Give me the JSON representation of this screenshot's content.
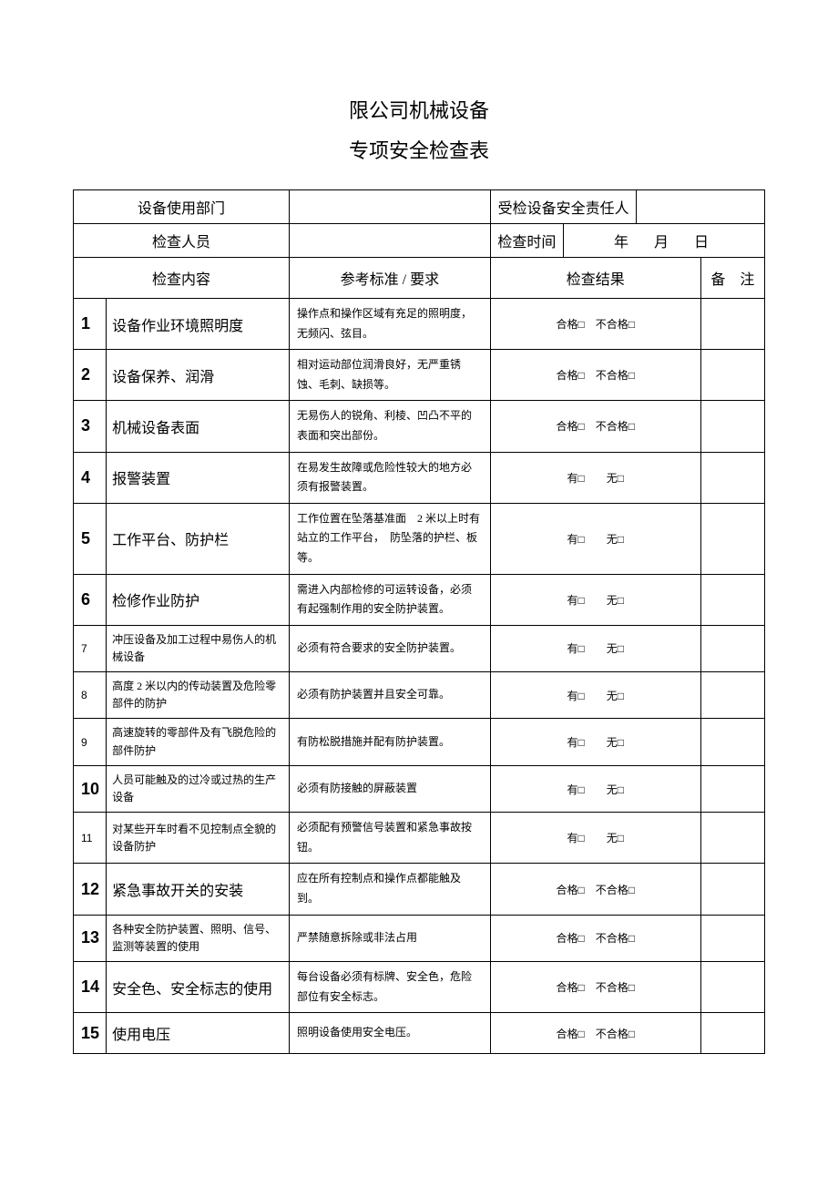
{
  "title": {
    "line1": "限公司机械设备",
    "line2": "专项安全检查表"
  },
  "header": {
    "dept_label": "设备使用部门",
    "dept_value": "",
    "responsible_label": "受检设备安全责任人",
    "responsible_value": "",
    "inspector_label": "检查人员",
    "inspector_value": "",
    "time_label": "检查时间",
    "time_value": "年　月　日"
  },
  "columns": {
    "content": "检查内容",
    "standard": "参考标准 / 要求",
    "result": "检查结果",
    "remark": "备　注"
  },
  "result_labels": {
    "pass": "合格□",
    "fail": "不合格□",
    "yes": "有□",
    "no": "无□"
  },
  "rows": [
    {
      "n": "1",
      "big": true,
      "item": "设备作业环境照明度",
      "item_big": true,
      "std": "操作点和操作区域有充足的照明度，无频闪、弦目。",
      "type": "pf"
    },
    {
      "n": "2",
      "big": true,
      "item": "设备保养、润滑",
      "item_big": true,
      "std": "相对运动部位润滑良好，无严重锈蚀、毛刺、缺损等。",
      "type": "pf"
    },
    {
      "n": "3",
      "big": true,
      "item": "机械设备表面",
      "item_big": true,
      "std": "无易伤人的锐角、利棱、凹凸不平的表面和突出部份。",
      "type": "pf"
    },
    {
      "n": "4",
      "big": true,
      "item": "报警装置",
      "item_big": true,
      "std": "在易发生故障或危险性较大的地方必须有报警装置。",
      "type": "yn"
    },
    {
      "n": "5",
      "big": true,
      "item": "工作平台、防护栏",
      "item_big": true,
      "std": "工作位置在坠落基准面　2 米以上时有站立的工作平台，　防坠落的护栏、板等。",
      "type": "yn"
    },
    {
      "n": "6",
      "big": true,
      "item": "检修作业防护",
      "item_big": true,
      "std": "需进入内部检修的可运转设备，必须有起强制作用的安全防护装置。",
      "type": "yn"
    },
    {
      "n": "7",
      "big": false,
      "item": "冲压设备及加工过程中易伤人的机械设备",
      "item_big": false,
      "std": "必须有符合要求的安全防护装置。",
      "type": "yn"
    },
    {
      "n": "8",
      "big": false,
      "item": "高度 2 米以内的传动装置及危险零部件的防护",
      "item_big": false,
      "std": "必须有防护装置并且安全可靠。",
      "type": "yn"
    },
    {
      "n": "9",
      "big": false,
      "item": "高速旋转的零部件及有飞脱危险的部件防护",
      "item_big": false,
      "std": "有防松脱措施并配有防护装置。",
      "type": "yn"
    },
    {
      "n": "10",
      "big": true,
      "item": "人员可能触及的过冷或过热的生产设备",
      "item_big": false,
      "std": "必须有防接触的屏蔽装置",
      "type": "yn"
    },
    {
      "n": "11",
      "big": false,
      "item": "对某些开车时看不见控制点全貌的设备防护",
      "item_big": false,
      "std": "必须配有预警信号装置和紧急事故按钮。",
      "type": "yn"
    },
    {
      "n": "12",
      "big": true,
      "item": "紧急事故开关的安装",
      "item_big": true,
      "std": "应在所有控制点和操作点都能触及到。",
      "type": "pf"
    },
    {
      "n": "13",
      "big": true,
      "item": "各种安全防护装置、照明、信号、监测等装置的使用",
      "item_big": false,
      "std": "严禁随意拆除或非法占用",
      "type": "pf"
    },
    {
      "n": "14",
      "big": true,
      "item": "安全色、安全标志的使用",
      "item_big": true,
      "std": "每台设备必须有标牌、安全色，危险部位有安全标志。",
      "type": "pf"
    },
    {
      "n": "15",
      "big": true,
      "item": "使用电压",
      "item_big": true,
      "std": "照明设备使用安全电压。",
      "type": "pf"
    }
  ]
}
